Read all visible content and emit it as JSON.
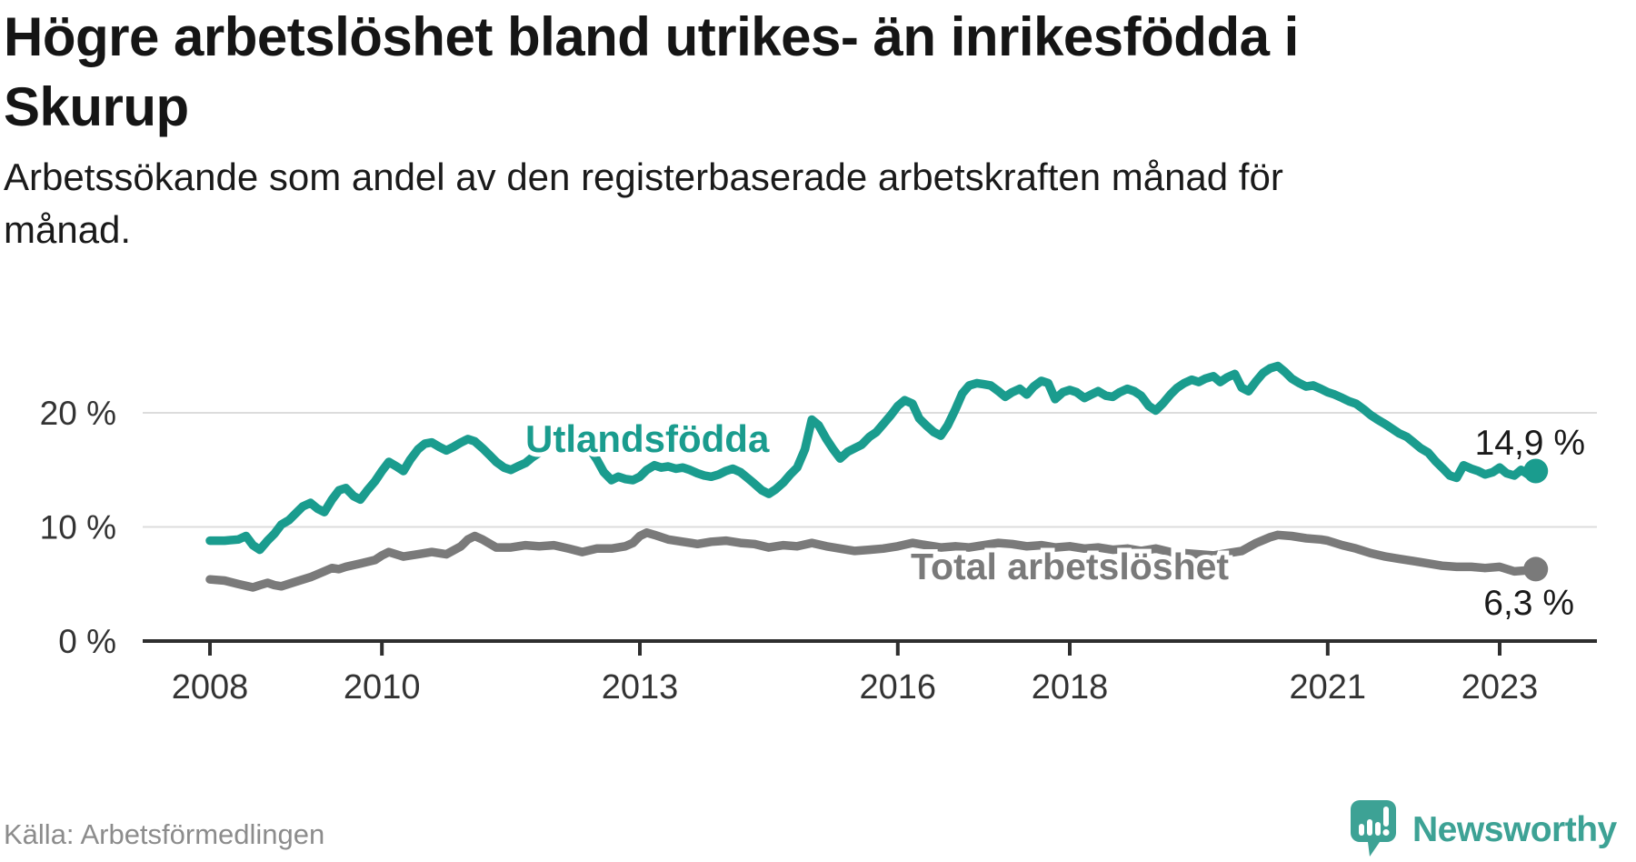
{
  "header": {
    "title": "Högre arbetslöshet bland utrikes- än inrikesfödda i Skurup",
    "title_lines": [
      "Högre arbetslöshet bland utrikes- än inrikesfödda i",
      "Skurup"
    ],
    "subtitle": "Arbetssökande som andel av den registerbaserade arbetskraften månad för månad.",
    "subtitle_lines": [
      "Arbetssökande som andel av den registerbaserade arbetskraften månad för",
      "månad."
    ]
  },
  "footer": {
    "source": "Källa: Arbetsförmedlingen",
    "brand": "Newsworthy",
    "brand_icon": "newsworthy-speech-bubble-bar-chart-icon"
  },
  "colors": {
    "foreign_born": "#1a9c8e",
    "total": "#7a7a7a",
    "gridline": "#dcdcdc",
    "axis": "#2e2e2e",
    "tick_text": "#333333",
    "annotation_text": "#1a1a1a",
    "title_text": "#151515",
    "source_text": "#8c8c8c",
    "brand": "#3da295"
  },
  "chart_data": {
    "type": "line",
    "title": "Högre arbetslöshet bland utrikes- än inrikesfödda i Skurup",
    "subtitle": "Arbetssökande som andel av den registerbaserade arbetskraften månad för månad.",
    "unit": "%",
    "grid": "horizontal-only",
    "legend_position": "inline-labels-on-lines",
    "x_axis": {
      "tick_values": [
        2008,
        2010,
        2013,
        2016,
        2018,
        2021,
        2023
      ],
      "tick_labels": [
        "2008",
        "2010",
        "2013",
        "2016",
        "2018",
        "2021",
        "2023"
      ],
      "range_years": [
        2008.0,
        2023.42
      ]
    },
    "y_axis": {
      "tick_values": [
        0,
        10,
        20
      ],
      "tick_labels": [
        "0 %",
        "10 %",
        "20 %"
      ],
      "range": [
        0,
        25
      ]
    },
    "series": [
      {
        "name": "Utlandsfödda",
        "color": "#1a9c8e",
        "end_value": 14.9,
        "end_label": "14,9 %",
        "points": [
          [
            2008.0,
            8.8
          ],
          [
            2008.17,
            8.8
          ],
          [
            2008.33,
            8.9
          ],
          [
            2008.42,
            9.2
          ],
          [
            2008.5,
            8.4
          ],
          [
            2008.58,
            8.0
          ],
          [
            2008.67,
            8.8
          ],
          [
            2008.75,
            9.4
          ],
          [
            2008.83,
            10.2
          ],
          [
            2008.92,
            10.6
          ],
          [
            2009.0,
            11.2
          ],
          [
            2009.08,
            11.8
          ],
          [
            2009.17,
            12.1
          ],
          [
            2009.25,
            11.6
          ],
          [
            2009.33,
            11.3
          ],
          [
            2009.42,
            12.4
          ],
          [
            2009.5,
            13.2
          ],
          [
            2009.58,
            13.4
          ],
          [
            2009.67,
            12.7
          ],
          [
            2009.75,
            12.4
          ],
          [
            2009.83,
            13.2
          ],
          [
            2009.92,
            14.0
          ],
          [
            2010.0,
            14.9
          ],
          [
            2010.08,
            15.7
          ],
          [
            2010.17,
            15.3
          ],
          [
            2010.25,
            14.9
          ],
          [
            2010.33,
            15.9
          ],
          [
            2010.42,
            16.8
          ],
          [
            2010.5,
            17.3
          ],
          [
            2010.58,
            17.4
          ],
          [
            2010.67,
            17.0
          ],
          [
            2010.75,
            16.7
          ],
          [
            2010.83,
            17.0
          ],
          [
            2010.92,
            17.4
          ],
          [
            2011.0,
            17.7
          ],
          [
            2011.08,
            17.5
          ],
          [
            2011.17,
            16.9
          ],
          [
            2011.25,
            16.3
          ],
          [
            2011.33,
            15.7
          ],
          [
            2011.42,
            15.2
          ],
          [
            2011.5,
            15.0
          ],
          [
            2011.58,
            15.3
          ],
          [
            2011.67,
            15.6
          ],
          [
            2011.75,
            16.1
          ],
          [
            2011.83,
            16.5
          ],
          [
            2011.92,
            17.0
          ],
          [
            2012.0,
            17.3
          ],
          [
            2012.08,
            17.1
          ],
          [
            2012.17,
            16.9
          ],
          [
            2012.25,
            17.2
          ],
          [
            2012.33,
            17.5
          ],
          [
            2012.42,
            16.8
          ],
          [
            2012.5,
            15.9
          ],
          [
            2012.58,
            14.8
          ],
          [
            2012.67,
            14.1
          ],
          [
            2012.75,
            14.4
          ],
          [
            2012.83,
            14.2
          ],
          [
            2012.92,
            14.1
          ],
          [
            2013.0,
            14.4
          ],
          [
            2013.08,
            15.0
          ],
          [
            2013.17,
            15.4
          ],
          [
            2013.25,
            15.2
          ],
          [
            2013.33,
            15.3
          ],
          [
            2013.42,
            15.1
          ],
          [
            2013.5,
            15.2
          ],
          [
            2013.58,
            15.0
          ],
          [
            2013.67,
            14.7
          ],
          [
            2013.75,
            14.5
          ],
          [
            2013.83,
            14.4
          ],
          [
            2013.92,
            14.6
          ],
          [
            2014.0,
            14.9
          ],
          [
            2014.08,
            15.1
          ],
          [
            2014.17,
            14.8
          ],
          [
            2014.25,
            14.3
          ],
          [
            2014.33,
            13.8
          ],
          [
            2014.42,
            13.2
          ],
          [
            2014.5,
            12.9
          ],
          [
            2014.58,
            13.3
          ],
          [
            2014.67,
            13.9
          ],
          [
            2014.75,
            14.6
          ],
          [
            2014.83,
            15.2
          ],
          [
            2014.92,
            16.8
          ],
          [
            2015.0,
            19.4
          ],
          [
            2015.08,
            18.9
          ],
          [
            2015.17,
            17.7
          ],
          [
            2015.25,
            16.8
          ],
          [
            2015.33,
            16.0
          ],
          [
            2015.42,
            16.6
          ],
          [
            2015.5,
            16.9
          ],
          [
            2015.58,
            17.2
          ],
          [
            2015.67,
            17.9
          ],
          [
            2015.75,
            18.3
          ],
          [
            2015.83,
            19.0
          ],
          [
            2015.92,
            19.8
          ],
          [
            2016.0,
            20.6
          ],
          [
            2016.08,
            21.1
          ],
          [
            2016.17,
            20.8
          ],
          [
            2016.25,
            19.5
          ],
          [
            2016.33,
            18.9
          ],
          [
            2016.42,
            18.3
          ],
          [
            2016.5,
            18.0
          ],
          [
            2016.58,
            18.9
          ],
          [
            2016.67,
            20.3
          ],
          [
            2016.75,
            21.7
          ],
          [
            2016.83,
            22.4
          ],
          [
            2016.92,
            22.6
          ],
          [
            2017.0,
            22.5
          ],
          [
            2017.08,
            22.4
          ],
          [
            2017.17,
            21.9
          ],
          [
            2017.25,
            21.4
          ],
          [
            2017.33,
            21.8
          ],
          [
            2017.42,
            22.1
          ],
          [
            2017.5,
            21.6
          ],
          [
            2017.58,
            22.3
          ],
          [
            2017.67,
            22.8
          ],
          [
            2017.75,
            22.6
          ],
          [
            2017.83,
            21.2
          ],
          [
            2017.92,
            21.8
          ],
          [
            2018.0,
            22.0
          ],
          [
            2018.08,
            21.8
          ],
          [
            2018.17,
            21.3
          ],
          [
            2018.25,
            21.6
          ],
          [
            2018.33,
            21.9
          ],
          [
            2018.42,
            21.5
          ],
          [
            2018.5,
            21.4
          ],
          [
            2018.58,
            21.8
          ],
          [
            2018.67,
            22.1
          ],
          [
            2018.75,
            21.9
          ],
          [
            2018.83,
            21.5
          ],
          [
            2018.92,
            20.6
          ],
          [
            2019.0,
            20.2
          ],
          [
            2019.08,
            20.8
          ],
          [
            2019.17,
            21.6
          ],
          [
            2019.25,
            22.2
          ],
          [
            2019.33,
            22.6
          ],
          [
            2019.42,
            22.9
          ],
          [
            2019.5,
            22.7
          ],
          [
            2019.58,
            23.0
          ],
          [
            2019.67,
            23.2
          ],
          [
            2019.75,
            22.7
          ],
          [
            2019.83,
            23.1
          ],
          [
            2019.92,
            23.4
          ],
          [
            2020.0,
            22.2
          ],
          [
            2020.08,
            21.9
          ],
          [
            2020.17,
            22.8
          ],
          [
            2020.25,
            23.5
          ],
          [
            2020.33,
            23.9
          ],
          [
            2020.42,
            24.1
          ],
          [
            2020.5,
            23.6
          ],
          [
            2020.58,
            23.0
          ],
          [
            2020.67,
            22.6
          ],
          [
            2020.75,
            22.3
          ],
          [
            2020.83,
            22.4
          ],
          [
            2020.92,
            22.1
          ],
          [
            2021.0,
            21.8
          ],
          [
            2021.08,
            21.6
          ],
          [
            2021.17,
            21.3
          ],
          [
            2021.25,
            21.0
          ],
          [
            2021.33,
            20.8
          ],
          [
            2021.42,
            20.3
          ],
          [
            2021.5,
            19.8
          ],
          [
            2021.58,
            19.4
          ],
          [
            2021.67,
            19.0
          ],
          [
            2021.75,
            18.6
          ],
          [
            2021.83,
            18.2
          ],
          [
            2021.92,
            17.9
          ],
          [
            2022.0,
            17.4
          ],
          [
            2022.08,
            16.9
          ],
          [
            2022.17,
            16.5
          ],
          [
            2022.25,
            15.8
          ],
          [
            2022.33,
            15.2
          ],
          [
            2022.42,
            14.5
          ],
          [
            2022.5,
            14.3
          ],
          [
            2022.58,
            15.4
          ],
          [
            2022.67,
            15.1
          ],
          [
            2022.75,
            14.9
          ],
          [
            2022.83,
            14.6
          ],
          [
            2022.92,
            14.8
          ],
          [
            2023.0,
            15.2
          ],
          [
            2023.08,
            14.7
          ],
          [
            2023.17,
            14.5
          ],
          [
            2023.25,
            15.0
          ],
          [
            2023.33,
            14.6
          ],
          [
            2023.42,
            14.9
          ]
        ]
      },
      {
        "name": "Total arbetslöshet",
        "color": "#7a7a7a",
        "end_value": 6.3,
        "end_label": "6,3 %",
        "points": [
          [
            2008.0,
            5.4
          ],
          [
            2008.17,
            5.3
          ],
          [
            2008.33,
            5.0
          ],
          [
            2008.5,
            4.7
          ],
          [
            2008.58,
            4.9
          ],
          [
            2008.67,
            5.1
          ],
          [
            2008.75,
            4.9
          ],
          [
            2008.83,
            4.8
          ],
          [
            2009.0,
            5.2
          ],
          [
            2009.17,
            5.6
          ],
          [
            2009.33,
            6.1
          ],
          [
            2009.42,
            6.4
          ],
          [
            2009.5,
            6.3
          ],
          [
            2009.58,
            6.5
          ],
          [
            2009.75,
            6.8
          ],
          [
            2009.92,
            7.1
          ],
          [
            2010.0,
            7.5
          ],
          [
            2010.08,
            7.8
          ],
          [
            2010.25,
            7.4
          ],
          [
            2010.42,
            7.6
          ],
          [
            2010.58,
            7.8
          ],
          [
            2010.75,
            7.6
          ],
          [
            2010.92,
            8.3
          ],
          [
            2011.0,
            8.9
          ],
          [
            2011.08,
            9.2
          ],
          [
            2011.17,
            8.9
          ],
          [
            2011.33,
            8.2
          ],
          [
            2011.5,
            8.2
          ],
          [
            2011.67,
            8.4
          ],
          [
            2011.83,
            8.3
          ],
          [
            2012.0,
            8.4
          ],
          [
            2012.17,
            8.1
          ],
          [
            2012.33,
            7.8
          ],
          [
            2012.5,
            8.1
          ],
          [
            2012.67,
            8.1
          ],
          [
            2012.83,
            8.3
          ],
          [
            2012.92,
            8.6
          ],
          [
            2013.0,
            9.2
          ],
          [
            2013.08,
            9.5
          ],
          [
            2013.17,
            9.3
          ],
          [
            2013.33,
            8.9
          ],
          [
            2013.5,
            8.7
          ],
          [
            2013.67,
            8.5
          ],
          [
            2013.83,
            8.7
          ],
          [
            2014.0,
            8.8
          ],
          [
            2014.17,
            8.6
          ],
          [
            2014.33,
            8.5
          ],
          [
            2014.5,
            8.2
          ],
          [
            2014.67,
            8.4
          ],
          [
            2014.83,
            8.3
          ],
          [
            2015.0,
            8.6
          ],
          [
            2015.17,
            8.3
          ],
          [
            2015.33,
            8.1
          ],
          [
            2015.5,
            7.9
          ],
          [
            2015.67,
            8.0
          ],
          [
            2015.83,
            8.1
          ],
          [
            2016.0,
            8.3
          ],
          [
            2016.17,
            8.6
          ],
          [
            2016.33,
            8.4
          ],
          [
            2016.5,
            8.2
          ],
          [
            2016.67,
            8.3
          ],
          [
            2016.83,
            8.2
          ],
          [
            2017.0,
            8.4
          ],
          [
            2017.17,
            8.6
          ],
          [
            2017.33,
            8.5
          ],
          [
            2017.5,
            8.3
          ],
          [
            2017.67,
            8.4
          ],
          [
            2017.83,
            8.2
          ],
          [
            2018.0,
            8.3
          ],
          [
            2018.17,
            8.1
          ],
          [
            2018.33,
            8.2
          ],
          [
            2018.5,
            8.0
          ],
          [
            2018.67,
            8.1
          ],
          [
            2018.83,
            7.9
          ],
          [
            2019.0,
            8.1
          ],
          [
            2019.17,
            7.8
          ],
          [
            2019.33,
            7.7
          ],
          [
            2019.5,
            7.6
          ],
          [
            2019.67,
            7.5
          ],
          [
            2019.83,
            7.7
          ],
          [
            2020.0,
            7.9
          ],
          [
            2020.17,
            8.6
          ],
          [
            2020.33,
            9.1
          ],
          [
            2020.42,
            9.3
          ],
          [
            2020.58,
            9.2
          ],
          [
            2020.75,
            9.0
          ],
          [
            2020.92,
            8.9
          ],
          [
            2021.0,
            8.8
          ],
          [
            2021.17,
            8.4
          ],
          [
            2021.33,
            8.1
          ],
          [
            2021.5,
            7.7
          ],
          [
            2021.67,
            7.4
          ],
          [
            2021.83,
            7.2
          ],
          [
            2022.0,
            7.0
          ],
          [
            2022.17,
            6.8
          ],
          [
            2022.33,
            6.6
          ],
          [
            2022.5,
            6.5
          ],
          [
            2022.67,
            6.5
          ],
          [
            2022.83,
            6.4
          ],
          [
            2023.0,
            6.5
          ],
          [
            2023.17,
            6.1
          ],
          [
            2023.33,
            6.2
          ],
          [
            2023.42,
            6.3
          ]
        ]
      }
    ]
  }
}
